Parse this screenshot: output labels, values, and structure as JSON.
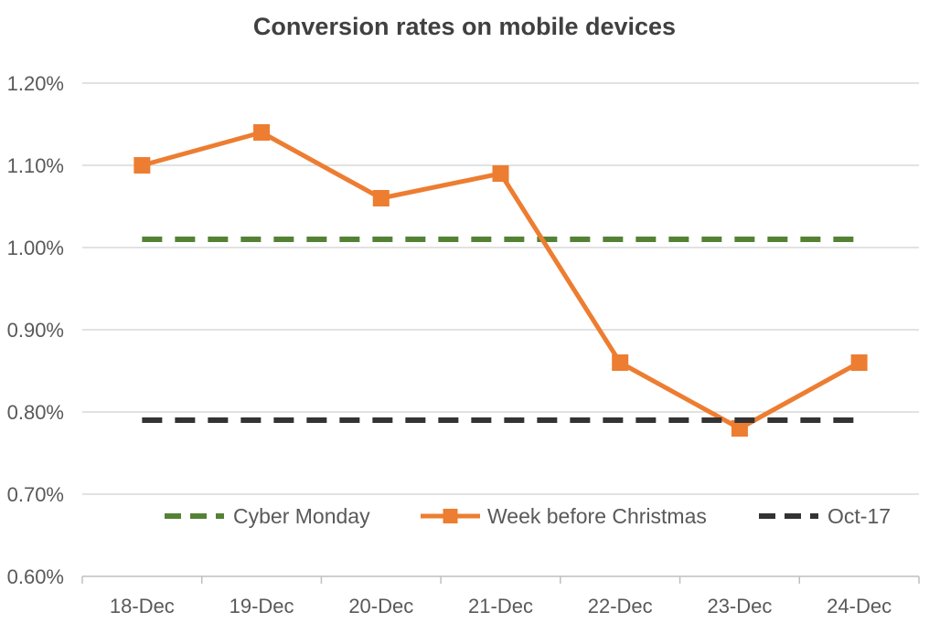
{
  "chart_data": {
    "type": "line",
    "title": "Conversion rates on mobile devices",
    "xlabel": "",
    "ylabel": "",
    "categories": [
      "18-Dec",
      "19-Dec",
      "20-Dec",
      "21-Dec",
      "22-Dec",
      "23-Dec",
      "24-Dec"
    ],
    "y_ticks": [
      "0.60%",
      "0.70%",
      "0.80%",
      "0.90%",
      "1.00%",
      "1.10%",
      "1.20%"
    ],
    "ylim": [
      0.6,
      1.2
    ],
    "grid": "horizontal",
    "legend_position": "bottom-inside",
    "series": [
      {
        "name": "Cyber Monday",
        "color": "#548235",
        "style": "dashed",
        "marker": "none",
        "values": [
          1.01,
          1.01,
          1.01,
          1.01,
          1.01,
          1.01,
          1.01
        ]
      },
      {
        "name": "Week before Christmas",
        "color": "#ED7D31",
        "style": "solid",
        "marker": "square",
        "values": [
          1.1,
          1.14,
          1.06,
          1.09,
          0.86,
          0.78,
          0.86
        ]
      },
      {
        "name": "Oct-17",
        "color": "#333333",
        "style": "dashed",
        "marker": "none",
        "values": [
          0.79,
          0.79,
          0.79,
          0.79,
          0.79,
          0.79,
          0.79
        ]
      }
    ]
  }
}
